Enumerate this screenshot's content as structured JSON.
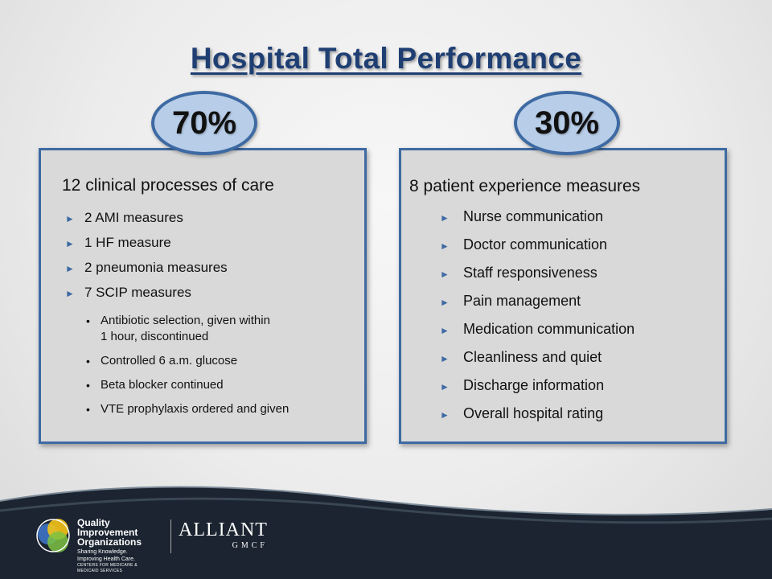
{
  "title": "Hospital Total Performance",
  "left": {
    "percent": "70%",
    "heading": "12 clinical processes of care",
    "items": [
      "2 AMI measures",
      "1 HF measure",
      "2 pneumonia measures",
      "7 SCIP measures"
    ],
    "subitems": [
      {
        "line1": "Antibiotic selection, given within",
        "line2": "1 hour, discontinued"
      },
      {
        "line1": "Controlled 6 a.m. glucose",
        "line2": ""
      },
      {
        "line1": "Beta blocker continued",
        "line2": ""
      },
      {
        "line1": "VTE prophylaxis ordered and given",
        "line2": ""
      }
    ]
  },
  "right": {
    "percent": "30%",
    "heading": "8 patient experience measures",
    "items": [
      "Nurse communication",
      "Doctor communication",
      "Staff responsiveness",
      "Pain management",
      "Medication communication",
      "Cleanliness and quiet",
      "Discharge information",
      "Overall hospital rating"
    ]
  },
  "footer": {
    "qio_name_line1": "Quality Improvement",
    "qio_name_line2": "Organizations",
    "qio_tagline": "Sharing Knowledge. Improving Health Care.",
    "qio_subline": "CENTERS FOR MEDICARE & MEDICAID SERVICES",
    "alliant_name": "ALLIANT",
    "alliant_sub": "GMCF"
  },
  "colors": {
    "title": "#1f3f73",
    "accent": "#3e6aa3",
    "badge_fill": "#b7cde8",
    "panel_fill": "#d9d9d9",
    "footer": "#1b2430"
  }
}
